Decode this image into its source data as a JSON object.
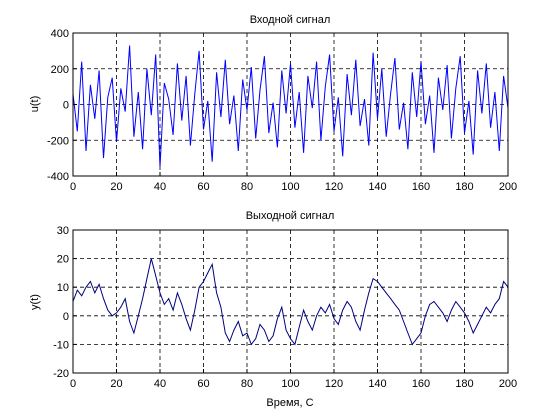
{
  "chart_data": [
    {
      "type": "line",
      "title": "Входной сигнал",
      "xlabel": "",
      "ylabel": "u(t)",
      "xlim": [
        0,
        200
      ],
      "ylim": [
        -400,
        400
      ],
      "xticks": [
        0,
        20,
        40,
        60,
        80,
        100,
        120,
        140,
        160,
        180,
        200
      ],
      "yticks": [
        -400,
        -200,
        0,
        200,
        400
      ],
      "grid": true,
      "line_color": "#0000ff",
      "series": [
        {
          "x": [
            0,
            2,
            4,
            6,
            8,
            10,
            12,
            14,
            16,
            18,
            20,
            22,
            24,
            26,
            28,
            30,
            32,
            34,
            36,
            38,
            40,
            42,
            44,
            46,
            48,
            50,
            52,
            54,
            56,
            58,
            60,
            62,
            64,
            66,
            68,
            70,
            72,
            74,
            76,
            78,
            80,
            82,
            84,
            86,
            88,
            90,
            92,
            94,
            96,
            98,
            100,
            102,
            104,
            106,
            108,
            110,
            112,
            114,
            116,
            118,
            120,
            122,
            124,
            126,
            128,
            130,
            132,
            134,
            136,
            138,
            140,
            142,
            144,
            146,
            148,
            150,
            152,
            154,
            156,
            158,
            160,
            162,
            164,
            166,
            168,
            170,
            172,
            174,
            176,
            178,
            180,
            182,
            184,
            186,
            188,
            190,
            192,
            194,
            196,
            198,
            200
          ],
          "y": [
            60,
            -150,
            240,
            -260,
            110,
            -80,
            190,
            -300,
            40,
            150,
            -210,
            90,
            -40,
            330,
            -180,
            70,
            -250,
            200,
            -60,
            280,
            -350,
            120,
            30,
            -170,
            230,
            -90,
            160,
            -230,
            60,
            300,
            -140,
            20,
            -320,
            180,
            -70,
            250,
            -110,
            50,
            -260,
            140,
            -30,
            210,
            -190,
            80,
            270,
            -160,
            10,
            -240,
            190,
            -50,
            230,
            -130,
            70,
            -270,
            160,
            -20,
            240,
            -200,
            100,
            280,
            -150,
            40,
            -290,
            170,
            -60,
            250,
            -120,
            30,
            -230,
            290,
            -80,
            200,
            -180,
            60,
            260,
            -140,
            10,
            -250,
            180,
            -70,
            240,
            -110,
            50,
            -270,
            150,
            -30,
            220,
            -190,
            90,
            270,
            -160,
            20,
            -280,
            190,
            -50,
            230,
            -130,
            70,
            -260,
            160,
            -20
          ]
        }
      ]
    },
    {
      "type": "line",
      "title": "Выходной сигнал",
      "xlabel": "Время, С",
      "ylabel": "y(t)",
      "xlim": [
        0,
        200
      ],
      "ylim": [
        -20,
        30
      ],
      "xticks": [
        0,
        20,
        40,
        60,
        80,
        100,
        120,
        140,
        160,
        180,
        200
      ],
      "yticks": [
        -20,
        -10,
        0,
        10,
        20,
        30
      ],
      "grid": true,
      "line_color": "#000080",
      "series": [
        {
          "x": [
            0,
            2,
            4,
            6,
            8,
            10,
            12,
            14,
            16,
            18,
            20,
            22,
            24,
            26,
            28,
            30,
            32,
            34,
            36,
            38,
            40,
            42,
            44,
            46,
            48,
            50,
            52,
            54,
            56,
            58,
            60,
            62,
            64,
            66,
            68,
            70,
            72,
            74,
            76,
            78,
            80,
            82,
            84,
            86,
            88,
            90,
            92,
            94,
            96,
            98,
            100,
            102,
            104,
            106,
            108,
            110,
            112,
            114,
            116,
            118,
            120,
            122,
            124,
            126,
            128,
            130,
            132,
            134,
            136,
            138,
            140,
            142,
            144,
            146,
            148,
            150,
            152,
            154,
            156,
            158,
            160,
            162,
            164,
            166,
            168,
            170,
            172,
            174,
            176,
            178,
            180,
            182,
            184,
            186,
            188,
            190,
            192,
            194,
            196,
            198,
            200
          ],
          "y": [
            5,
            9,
            7,
            10,
            12,
            8,
            11,
            6,
            2,
            0,
            1,
            3,
            6,
            -2,
            -6,
            0,
            6,
            13,
            20,
            14,
            8,
            4,
            6,
            2,
            8,
            4,
            -1,
            -5,
            2,
            10,
            12,
            15,
            18,
            8,
            3,
            -6,
            -9,
            -5,
            -2,
            -7,
            -6,
            -10,
            -8,
            -3,
            -5,
            -9,
            -7,
            -1,
            3,
            -5,
            -8,
            -10,
            -4,
            2,
            -2,
            -5,
            0,
            3,
            1,
            4,
            -1,
            -3,
            2,
            5,
            3,
            -2,
            -5,
            2,
            8,
            13,
            12,
            10,
            8,
            6,
            4,
            2,
            -2,
            -6,
            -10,
            -8,
            -6,
            0,
            4,
            5,
            3,
            1,
            -2,
            2,
            5,
            3,
            1,
            -2,
            -6,
            -3,
            0,
            3,
            1,
            4,
            6,
            12,
            10
          ]
        }
      ]
    }
  ]
}
